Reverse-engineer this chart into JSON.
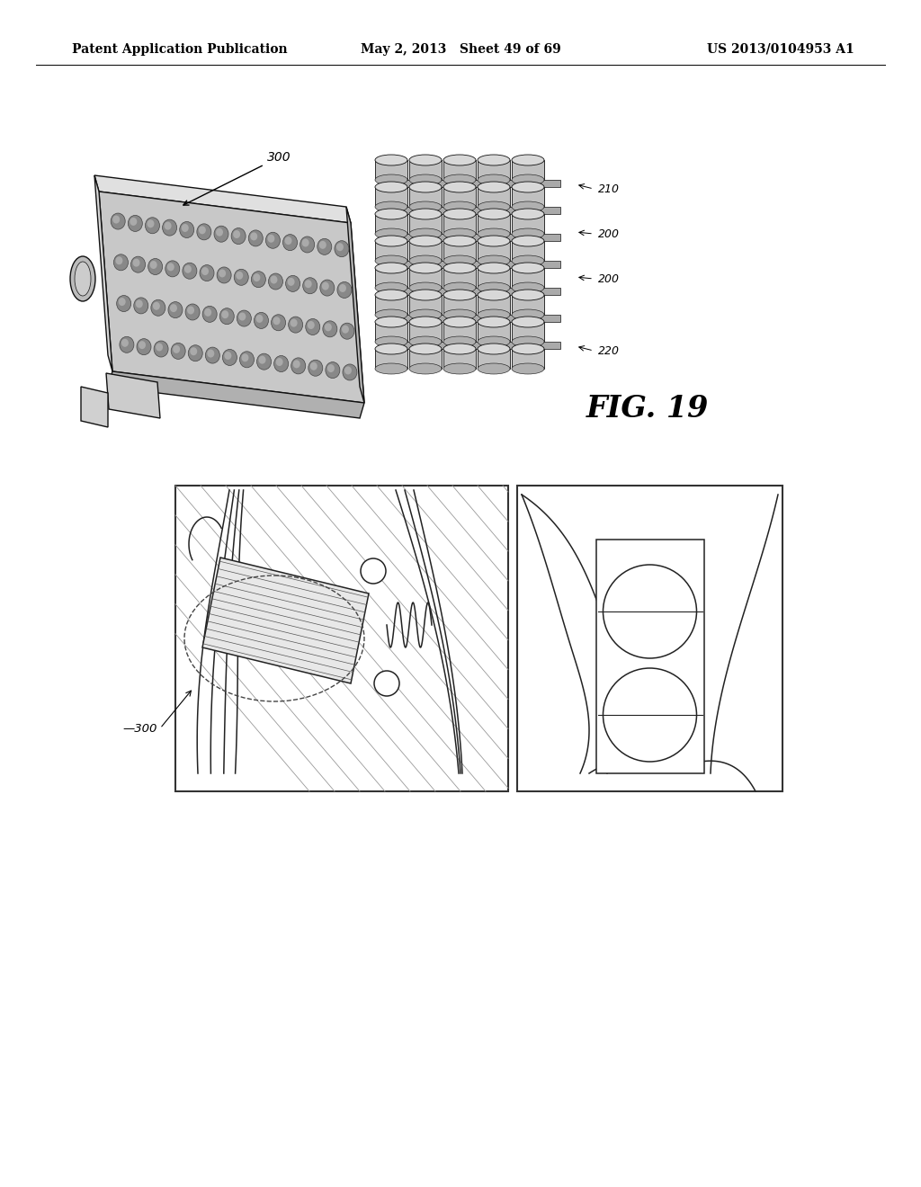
{
  "background_color": "#ffffff",
  "header_left": "Patent Application Publication",
  "header_center": "May 2, 2013   Sheet 49 of 69",
  "header_right": "US 2013/0104953 A1",
  "fig_label": "FIG. 19",
  "text_color": "#000000"
}
